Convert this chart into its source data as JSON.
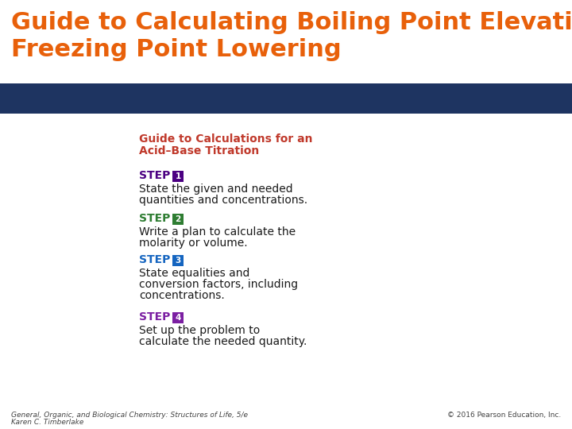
{
  "title_line1": "Guide to Calculating Boiling Point Elevation,",
  "title_line2": "Freezing Point Lowering",
  "title_color": "#E8600A",
  "bg_color": "#FFFFFF",
  "header_bar_color": "#1E3461",
  "subtitle_text_line1": "Guide to Calculations for an",
  "subtitle_text_line2": "Acid–Base Titration",
  "subtitle_color": "#C0392B",
  "steps": [
    {
      "step_num": "1",
      "step_color": "#4B0082",
      "box_color": "#4B0082",
      "text_line1": "State the given and needed",
      "text_line2": "quantities and concentrations."
    },
    {
      "step_num": "2",
      "step_color": "#2E7D32",
      "box_color": "#2E7D32",
      "text_line1": "Write a plan to calculate the",
      "text_line2": "molarity or volume."
    },
    {
      "step_num": "3",
      "step_color": "#1565C0",
      "box_color": "#1565C0",
      "text_line1": "State equalities and",
      "text_line2": "conversion factors, including",
      "text_line3": "concentrations."
    },
    {
      "step_num": "4",
      "step_color": "#7B1FA2",
      "box_color": "#7B1FA2",
      "text_line1": "Set up the problem to",
      "text_line2": "calculate the needed quantity."
    }
  ],
  "footer_left_line1": "General, Organic, and Biological Chemistry: Structures of Life, 5/e",
  "footer_left_line2": "Karen C. Timberlake",
  "footer_right": "© 2016 Pearson Education, Inc.",
  "text_color": "#1a1a1a"
}
